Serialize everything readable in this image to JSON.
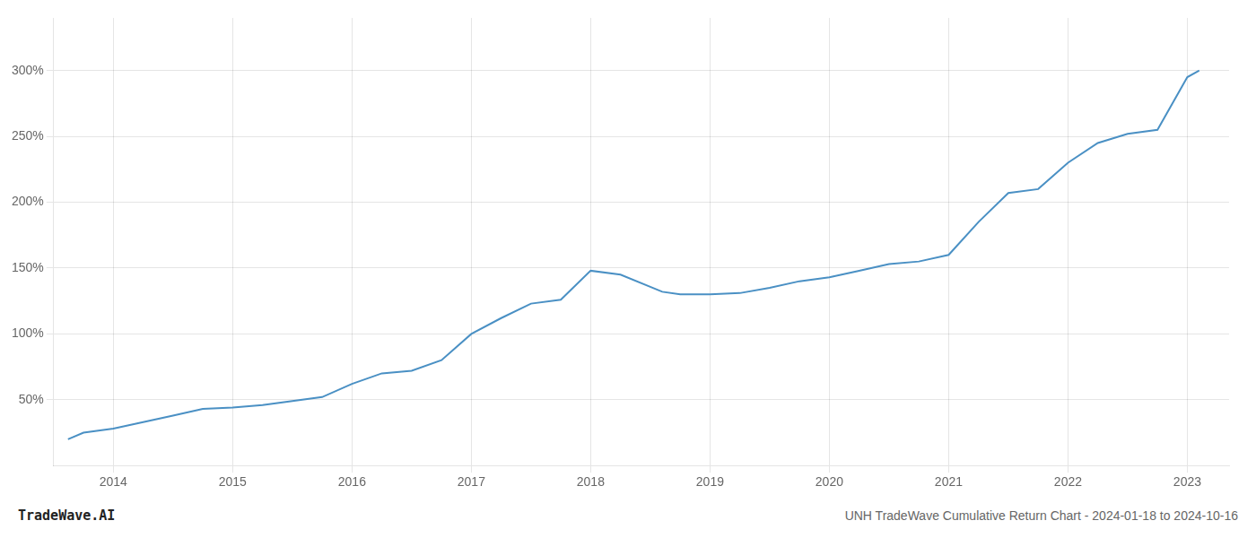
{
  "chart_data": {
    "type": "line",
    "title": "UNH TradeWave Cumulative Return Chart - 2024-01-18 to 2024-10-16",
    "annotations": [
      "TradeWave.AI"
    ],
    "color": "#4a90c4",
    "grid": true,
    "x": [
      2013.62,
      2013.75,
      2014.0,
      2014.25,
      2014.5,
      2014.75,
      2015.0,
      2015.25,
      2015.75,
      2016.0,
      2016.25,
      2016.5,
      2016.75,
      2017.0,
      2017.25,
      2017.5,
      2017.75,
      2018.0,
      2018.25,
      2018.6,
      2018.75,
      2019.0,
      2019.25,
      2019.5,
      2019.75,
      2020.0,
      2020.25,
      2020.5,
      2020.75,
      2021.0,
      2021.25,
      2021.5,
      2021.75,
      2022.0,
      2022.25,
      2022.5,
      2022.75,
      2023.0,
      2023.1
    ],
    "values": [
      20,
      25,
      28,
      33,
      38,
      43,
      44,
      46,
      52,
      62,
      70,
      72,
      80,
      100,
      112,
      123,
      126,
      148,
      145,
      132,
      130,
      130,
      131,
      135,
      140,
      143,
      148,
      153,
      155,
      160,
      185,
      207,
      210,
      230,
      245,
      252,
      255,
      295,
      300
    ],
    "xlim": [
      2013.5,
      2023.35
    ],
    "xticks": [
      2014,
      2015,
      2016,
      2017,
      2018,
      2019,
      2020,
      2021,
      2022,
      2023
    ],
    "ylim": [
      0,
      340
    ],
    "yticks": [
      {
        "value": 50,
        "label": "50%"
      },
      {
        "value": 100,
        "label": "100%"
      },
      {
        "value": 150,
        "label": "150%"
      },
      {
        "value": 200,
        "label": "200%"
      },
      {
        "value": 250,
        "label": "250%"
      },
      {
        "value": 300,
        "label": "300%"
      }
    ]
  }
}
